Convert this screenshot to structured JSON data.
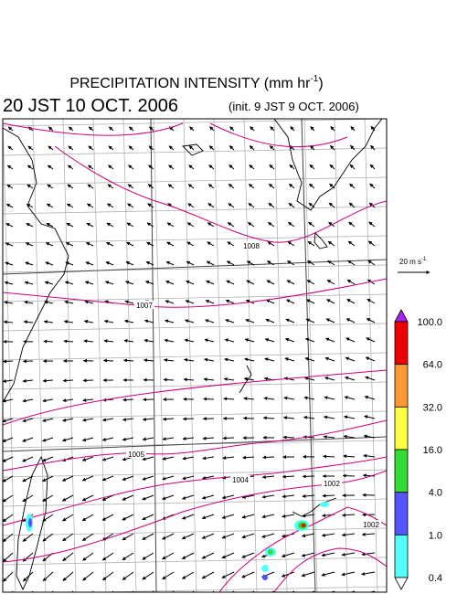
{
  "header": {
    "title": "PRECIPITATION INTENSITY (mm hr",
    "title_exponent": "-1",
    "title_close": ")",
    "valid_time": "20 JST 10 OCT. 2006",
    "init_time": "(init. 9 JST 9 OCT. 2006)"
  },
  "isobar_labels": [
    "1008",
    "1007",
    "1005",
    "1004",
    "1002",
    "1002"
  ],
  "vector_scale": {
    "label": "20 m s",
    "exponent": "-1"
  },
  "colorbar": {
    "levels": [
      "100.0",
      "64.0",
      "32.0",
      "16.0",
      "4.0",
      "1.0",
      "0.4"
    ],
    "colors": [
      "#ee0000",
      "#ff9933",
      "#ffff44",
      "#33dd33",
      "#5555ff",
      "#55ffff"
    ],
    "over_color": "#aa22ee",
    "under_color": "#ffffff"
  }
}
